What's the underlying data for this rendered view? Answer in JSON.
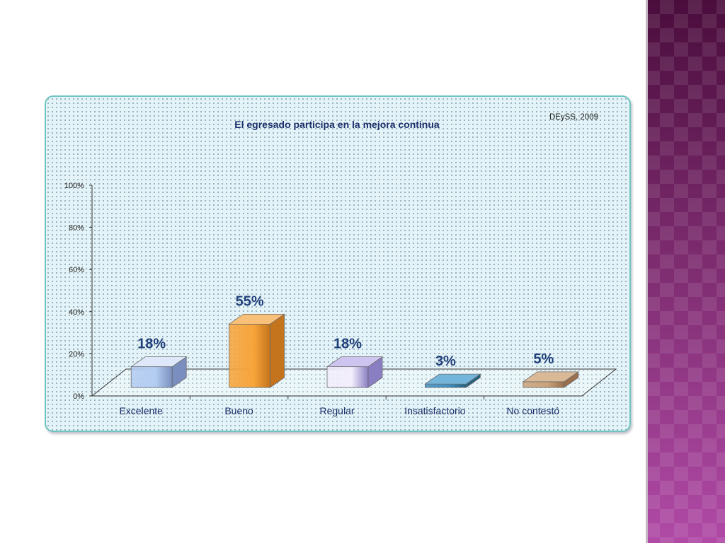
{
  "chart_data": {
    "type": "bar",
    "title": "El egresado participa en la mejora continua",
    "source_note": "DEySS, 2009",
    "categories": [
      "Excelente",
      "Bueno",
      "Regular",
      "Insatisfactorio",
      "No contestó"
    ],
    "values": [
      18,
      55,
      18,
      3,
      5
    ],
    "data_labels": [
      "18%",
      "55%",
      "18%",
      "3%",
      "5%"
    ],
    "y_ticks": [
      "0%",
      "20%",
      "40%",
      "60%",
      "80%",
      "100%"
    ],
    "ylim": [
      0,
      100
    ],
    "grid": false,
    "legend": "none",
    "label_color": "#1f3f7a",
    "bar_colors": [
      {
        "front": "#b3ccf2",
        "side": "#7a8fbf",
        "top": "#dde8fb"
      },
      {
        "front": "#f7a43a",
        "side": "#c4741c",
        "top": "#f9c07a"
      },
      {
        "front": "#f2eefc",
        "side": "#8a7ec2",
        "top": "#cdc4ef"
      },
      {
        "front": "#3f8fc0",
        "side": "#24607f",
        "top": "#74b5dc"
      },
      {
        "front": "#c9a27a",
        "side": "#9a6f4d",
        "top": "#d9b996"
      }
    ]
  }
}
